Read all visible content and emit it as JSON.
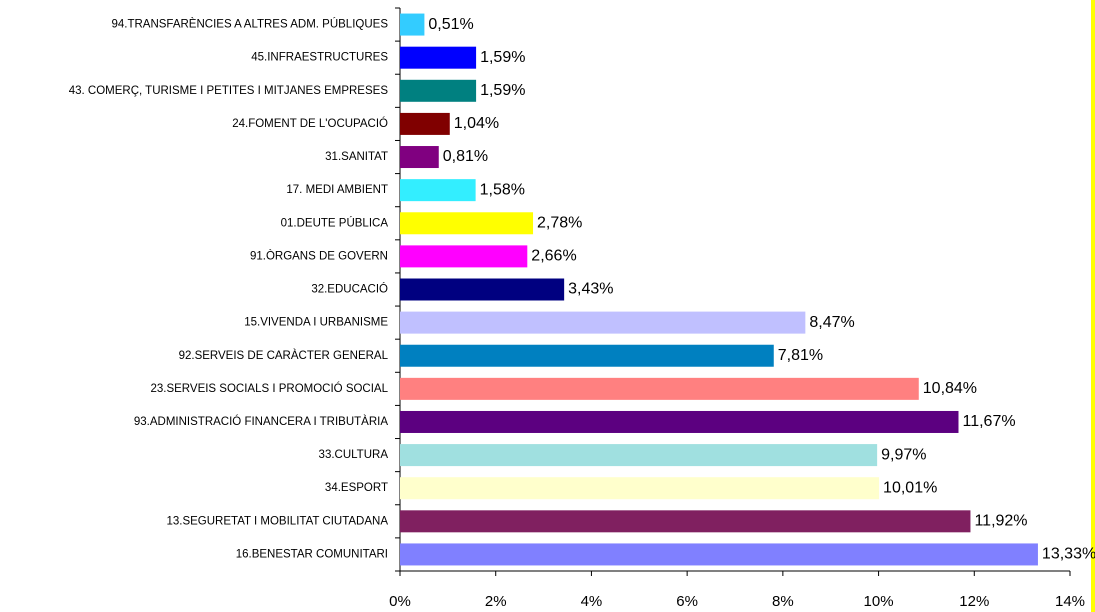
{
  "chart_data": {
    "type": "hbar",
    "categories": [
      "94.TRANSFARÈNCIES A ALTRES ADM. PÚBLIQUES",
      "45.INFRAESTRUCTURES",
      "43. COMERÇ, TURISME I PETITES I MITJANES EMPRESES",
      "24.FOMENT DE L'OCUPACIÓ",
      "31.SANITAT",
      "17. MEDI AMBIENT",
      "01.DEUTE PÚBLICA",
      "91.ÒRGANS DE GOVERN",
      "32.EDUCACIÓ",
      "15.VIVENDA I URBANISME",
      "92.SERVEIS DE CARÀCTER GENERAL",
      "23.SERVEIS SOCIALS I PROMOCIÓ SOCIAL",
      "93.ADMINISTRACIÓ FINANCERA I TRIBUTÀRIA",
      "33.CULTURA",
      "34.ESPORT",
      "13.SEGURETAT I MOBILITAT CIUTADANA",
      "16.BENESTAR COMUNITARI"
    ],
    "values": [
      0.51,
      1.59,
      1.59,
      1.04,
      0.81,
      1.58,
      2.78,
      2.66,
      3.43,
      8.47,
      7.81,
      10.84,
      11.67,
      9.97,
      10.01,
      11.92,
      13.33
    ],
    "value_labels": [
      "0,51%",
      "1,59%",
      "1,59%",
      "1,04%",
      "0,81%",
      "1,58%",
      "2,78%",
      "2,66%",
      "3,43%",
      "8,47%",
      "7,81%",
      "10,84%",
      "11,67%",
      "9,97%",
      "10,01%",
      "11,92%",
      "13,33%"
    ],
    "colors": [
      "#33CCFF",
      "#0000FF",
      "#008080",
      "#800000",
      "#800080",
      "#33EEFF",
      "#FFFF00",
      "#FF00FF",
      "#000080",
      "#C0C0FF",
      "#0080C0",
      "#FF8080",
      "#5C0080",
      "#A0E0E0",
      "#FFFFCC",
      "#802060",
      "#8080FF"
    ],
    "xlim": [
      0,
      14
    ],
    "xticks": [
      {
        "value": 0,
        "label": "0%"
      },
      {
        "value": 2,
        "label": "2%"
      },
      {
        "value": 4,
        "label": "4%"
      },
      {
        "value": 6,
        "label": "6%"
      },
      {
        "value": 8,
        "label": "8%"
      },
      {
        "value": 10,
        "label": "10%"
      },
      {
        "value": 12,
        "label": "12%"
      },
      {
        "value": 14,
        "label": "14%"
      }
    ]
  }
}
